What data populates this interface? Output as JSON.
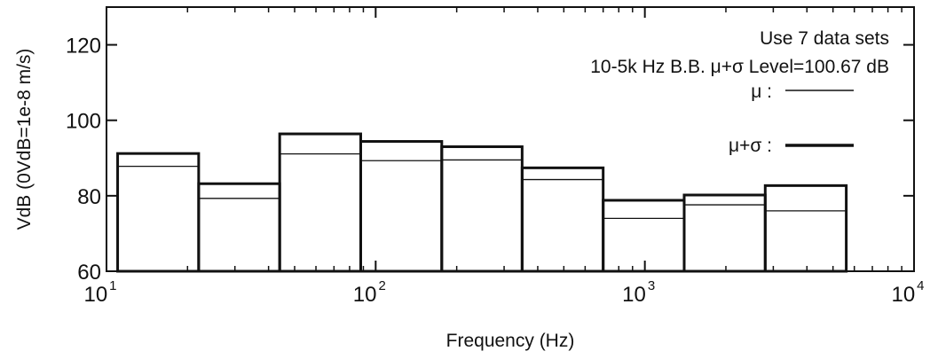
{
  "chart_data": {
    "type": "bar",
    "xlabel": "Frequency (Hz)",
    "ylabel": "VdB (0VdB=1e-8 m/s)",
    "x_scale": "log",
    "xlim": [
      10,
      10000
    ],
    "ylim": [
      60,
      130
    ],
    "x_tick_labels": [
      {
        "base": "10",
        "exp": "1"
      },
      {
        "base": "10",
        "exp": "2"
      },
      {
        "base": "10",
        "exp": "3"
      },
      {
        "base": "10",
        "exp": "4"
      }
    ],
    "y_ticks": [
      60,
      80,
      100,
      120
    ],
    "y_tick_labels": [
      "60",
      "80",
      "100",
      "120"
    ],
    "bands": [
      {
        "f_low": 11,
        "f_high": 22
      },
      {
        "f_low": 22,
        "f_high": 44
      },
      {
        "f_low": 44,
        "f_high": 88
      },
      {
        "f_low": 88,
        "f_high": 176
      },
      {
        "f_low": 176,
        "f_high": 350
      },
      {
        "f_low": 350,
        "f_high": 700
      },
      {
        "f_low": 700,
        "f_high": 1400
      },
      {
        "f_low": 1400,
        "f_high": 2800
      },
      {
        "f_low": 2800,
        "f_high": 5600
      }
    ],
    "series": [
      {
        "name": "μ",
        "values": [
          87.8,
          79.3,
          91.1,
          89.3,
          89.5,
          84.3,
          74.0,
          77.6,
          76.0
        ]
      },
      {
        "name": "μ+σ",
        "values": [
          91.2,
          83.2,
          96.4,
          94.4,
          93.0,
          87.4,
          78.8,
          80.2,
          82.7
        ]
      }
    ],
    "annotations": {
      "line1": "Use 7 data sets",
      "line2": "10-5k Hz B.B. μ+σ Level=100.67 dB"
    },
    "legend": {
      "position": "top-right",
      "mean_label": "μ :",
      "mean_plus_sigma_label": "μ+σ :"
    }
  }
}
